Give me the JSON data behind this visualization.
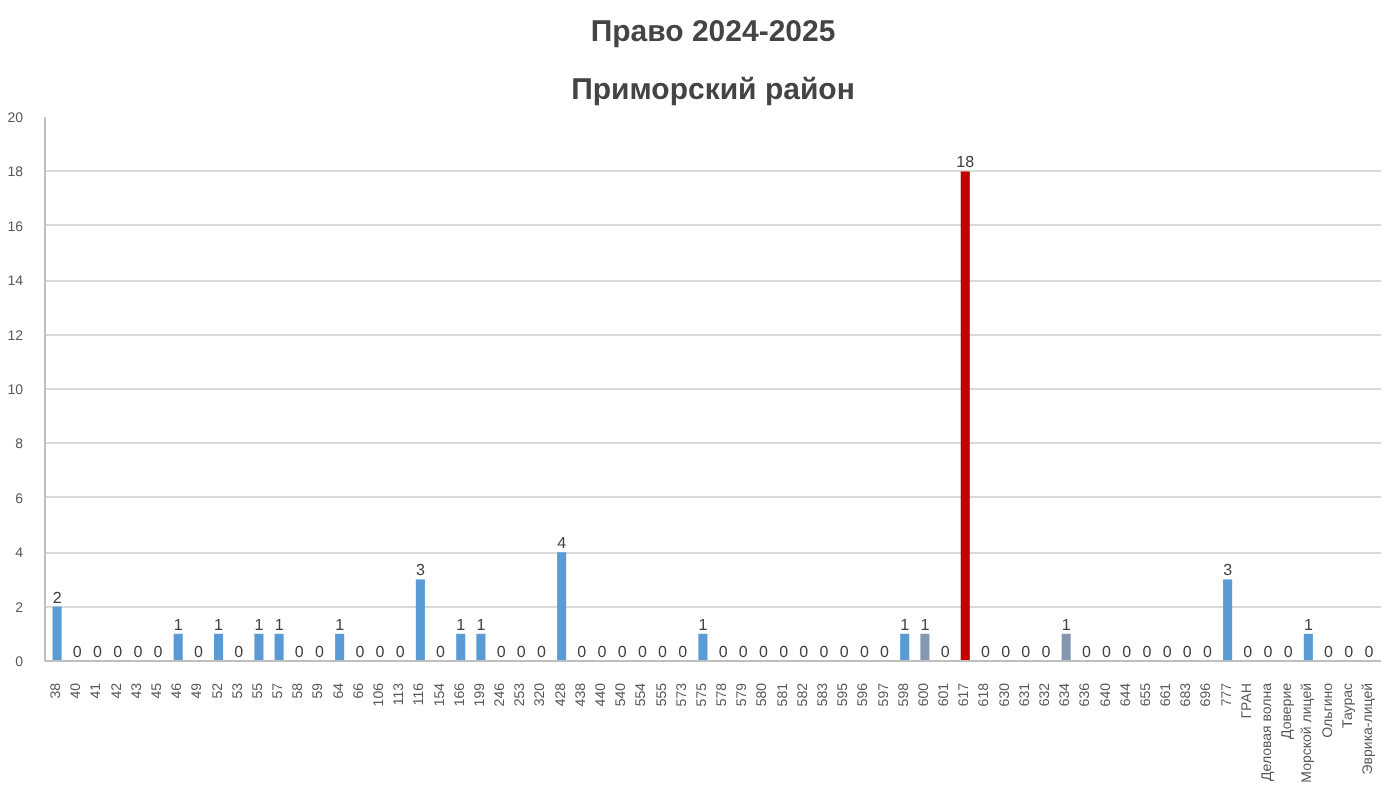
{
  "chart_data": {
    "type": "bar",
    "title": "Право 2024-2025",
    "subtitle": "Приморский район",
    "categories": [
      "38",
      "40",
      "41",
      "42",
      "43",
      "45",
      "46",
      "49",
      "52",
      "53",
      "55",
      "57",
      "58",
      "59",
      "64",
      "66",
      "106",
      "113",
      "116",
      "154",
      "166",
      "199",
      "246",
      "253",
      "320",
      "428",
      "438",
      "440",
      "540",
      "554",
      "555",
      "573",
      "575",
      "578",
      "579",
      "580",
      "581",
      "582",
      "583",
      "595",
      "596",
      "597",
      "598",
      "600",
      "601",
      "617",
      "618",
      "630",
      "631",
      "632",
      "634",
      "636",
      "640",
      "644",
      "655",
      "661",
      "683",
      "696",
      "777",
      "ГРАН",
      "Деловая волна",
      "Доверие",
      "Морской лицей",
      "Ольгино",
      "Таурас",
      "Эврика-лицей"
    ],
    "values": [
      2,
      0,
      0,
      0,
      0,
      0,
      1,
      0,
      1,
      0,
      1,
      1,
      0,
      0,
      1,
      0,
      0,
      0,
      3,
      0,
      1,
      1,
      0,
      0,
      0,
      4,
      0,
      0,
      0,
      0,
      0,
      0,
      1,
      0,
      0,
      0,
      0,
      0,
      0,
      0,
      0,
      0,
      1,
      1,
      0,
      18,
      0,
      0,
      0,
      0,
      1,
      0,
      0,
      0,
      0,
      0,
      0,
      0,
      3,
      0,
      0,
      0,
      1,
      0,
      0,
      0
    ],
    "colors": [
      "#5b9bd5",
      "#5b9bd5",
      "#5b9bd5",
      "#5b9bd5",
      "#5b9bd5",
      "#5b9bd5",
      "#5b9bd5",
      "#5b9bd5",
      "#5b9bd5",
      "#5b9bd5",
      "#5b9bd5",
      "#5b9bd5",
      "#5b9bd5",
      "#5b9bd5",
      "#5b9bd5",
      "#5b9bd5",
      "#5b9bd5",
      "#5b9bd5",
      "#5b9bd5",
      "#5b9bd5",
      "#5b9bd5",
      "#5b9bd5",
      "#5b9bd5",
      "#5b9bd5",
      "#5b9bd5",
      "#5b9bd5",
      "#5b9bd5",
      "#5b9bd5",
      "#5b9bd5",
      "#5b9bd5",
      "#5b9bd5",
      "#5b9bd5",
      "#5b9bd5",
      "#5b9bd5",
      "#5b9bd5",
      "#5b9bd5",
      "#5b9bd5",
      "#5b9bd5",
      "#5b9bd5",
      "#5b9bd5",
      "#5b9bd5",
      "#5b9bd5",
      "#5b9bd5",
      "#8497b0",
      "#5b9bd5",
      "#c00000",
      "#5b9bd5",
      "#5b9bd5",
      "#5b9bd5",
      "#5b9bd5",
      "#8497b0",
      "#5b9bd5",
      "#5b9bd5",
      "#5b9bd5",
      "#5b9bd5",
      "#5b9bd5",
      "#5b9bd5",
      "#5b9bd5",
      "#5b9bd5",
      "#5b9bd5",
      "#5b9bd5",
      "#5b9bd5",
      "#5b9bd5",
      "#5b9bd5",
      "#5b9bd5",
      "#5b9bd5"
    ],
    "ylim": [
      0,
      20
    ],
    "yticks": [
      0,
      2,
      4,
      6,
      8,
      10,
      12,
      14,
      16,
      18,
      20
    ],
    "grid": "y",
    "data_labels": true
  }
}
